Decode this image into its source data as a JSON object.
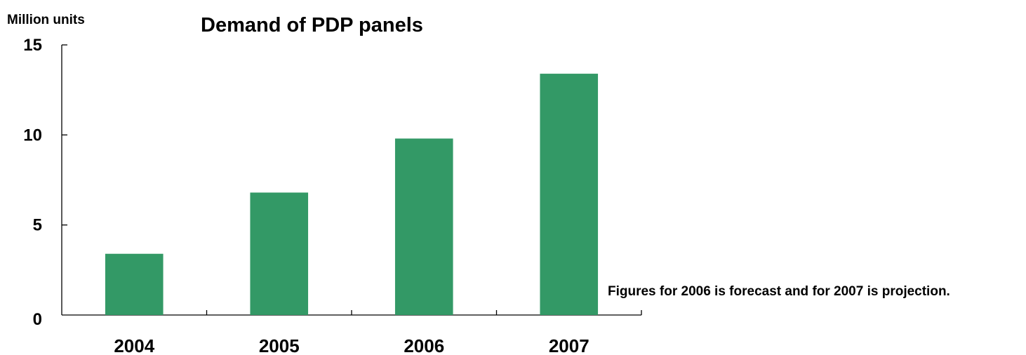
{
  "chart_data": {
    "type": "bar",
    "title": "Demand of PDP panels",
    "ylabel": "Million units",
    "xlabel": "",
    "categories": [
      "2004",
      "2005",
      "2006",
      "2007"
    ],
    "values": [
      3.4,
      6.8,
      9.8,
      13.4
    ],
    "ylim": [
      0,
      15
    ],
    "yticks": [
      0,
      5,
      10,
      15
    ],
    "grid": false,
    "legend": "none",
    "bar_color": "#339966",
    "annotation": "Figures for 2006 is forecast and for 2007 is projection."
  }
}
